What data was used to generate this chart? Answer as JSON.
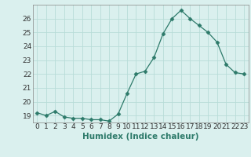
{
  "xlabel": "Humidex (Indice chaleur)",
  "x": [
    0,
    1,
    2,
    3,
    4,
    5,
    6,
    7,
    8,
    9,
    10,
    11,
    12,
    13,
    14,
    15,
    16,
    17,
    18,
    19,
    20,
    21,
    22,
    23
  ],
  "y": [
    19.2,
    19.0,
    19.3,
    18.9,
    18.8,
    18.8,
    18.7,
    18.7,
    18.6,
    19.1,
    20.6,
    22.0,
    22.2,
    23.2,
    24.9,
    26.0,
    26.6,
    26.0,
    25.5,
    25.0,
    24.3,
    22.7,
    22.1,
    22.0
  ],
  "line_color": "#2d7a6a",
  "marker": "D",
  "marker_size": 2.5,
  "bg_color": "#daf0ee",
  "grid_color": "#b8dcd8",
  "ylim": [
    18.5,
    27.0
  ],
  "yticks": [
    19,
    20,
    21,
    22,
    23,
    24,
    25,
    26
  ],
  "xticks": [
    0,
    1,
    2,
    3,
    4,
    5,
    6,
    7,
    8,
    9,
    10,
    11,
    12,
    13,
    14,
    15,
    16,
    17,
    18,
    19,
    20,
    21,
    22,
    23
  ],
  "tick_label_fontsize": 6.5,
  "xlabel_fontsize": 7.5,
  "xlabel_color": "#2d7a6a",
  "tick_color": "#333333",
  "spine_color": "#888888"
}
